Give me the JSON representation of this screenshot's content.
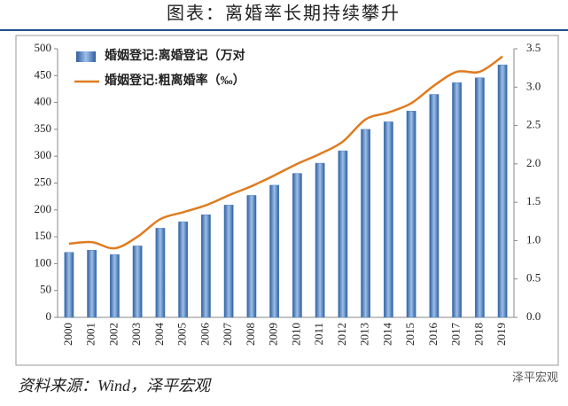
{
  "title": "图表：离婚率长期持续攀升",
  "source": "资料来源：Wind，泽平宏观",
  "watermark": "泽平宏观",
  "chart_data": {
    "type": "combo",
    "categories": [
      "2000",
      "2001",
      "2002",
      "2003",
      "2004",
      "2005",
      "2006",
      "2007",
      "2008",
      "2009",
      "2010",
      "2011",
      "2012",
      "2013",
      "2014",
      "2015",
      "2016",
      "2017",
      "2018",
      "2019"
    ],
    "series": [
      {
        "name": "婚姻登记:离婚登记（万对",
        "type": "bar",
        "color": "#4f81bd",
        "values": [
          121,
          125,
          117,
          133,
          166,
          178,
          191,
          209,
          227,
          246,
          268,
          287,
          310,
          350,
          364,
          384,
          415,
          437,
          446,
          470
        ]
      },
      {
        "name": "婚姻登记:粗离婚率（‰）",
        "type": "line",
        "axis": "y2",
        "color": "#e07b1f",
        "values": [
          0.96,
          0.98,
          0.9,
          1.05,
          1.28,
          1.37,
          1.46,
          1.59,
          1.71,
          1.85,
          2.0,
          2.13,
          2.29,
          2.58,
          2.67,
          2.79,
          3.02,
          3.2,
          3.2,
          3.4
        ]
      }
    ],
    "ylim": [
      0,
      500
    ],
    "yticks": [
      0,
      50,
      100,
      150,
      200,
      250,
      300,
      350,
      400,
      450,
      500
    ],
    "y2lim": [
      0,
      3.5
    ],
    "y2ticks": [
      {
        "value": 0,
        "label": "0.0"
      },
      0.5,
      {
        "value": 1,
        "label": "1.0"
      },
      1.5,
      {
        "value": 2,
        "label": "2.0"
      },
      2.5,
      {
        "value": 3,
        "label": "3.0"
      },
      3.5
    ]
  }
}
